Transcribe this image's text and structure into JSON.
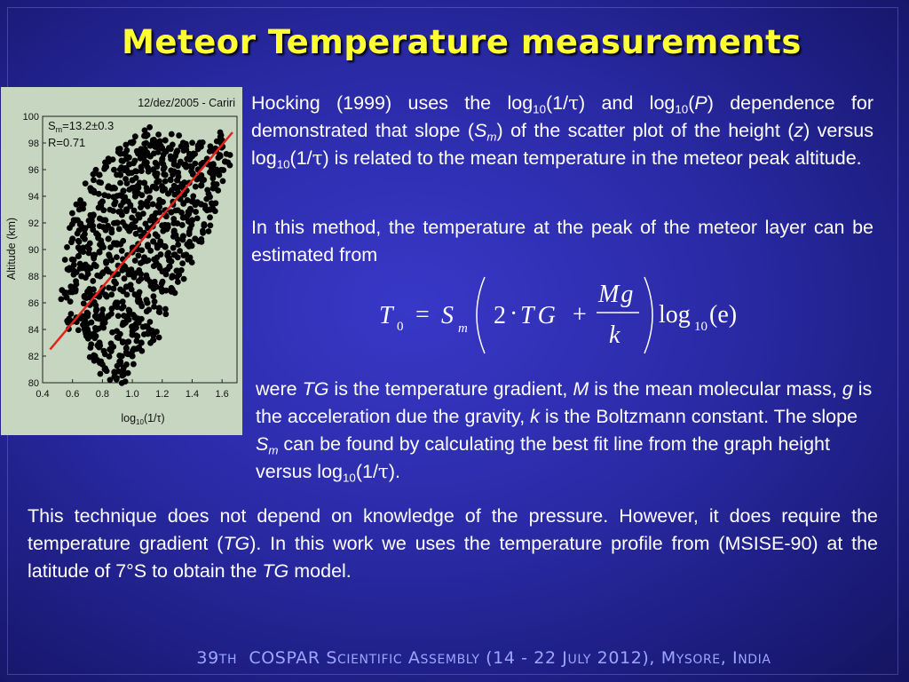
{
  "title": "Meteor Temperature measurements",
  "para1": {
    "a": "Hocking (1999) uses the log",
    "a_sub": "10",
    "b": "(1/",
    "tau1": "τ",
    "c": ") and log",
    "c_sub": "10",
    "d": "(",
    "P": "P",
    "e": ") dependence for demonstrated that slope (",
    "S": "S",
    "S_sub": "m",
    "f": ") of the scatter plot of the height (",
    "z": "z",
    "g": ") versus log",
    "g_sub": "10",
    "h": "(1/",
    "tau2": "τ",
    "i": ") is related to the mean temperature in the meteor peak altitude."
  },
  "para2": "In this method, the temperature at the peak of the meteor layer can be estimated from",
  "formula": {
    "T": "T",
    "T_sub": "0",
    "eq": "=",
    "S": "S",
    "S_sub": "m",
    "two": "2",
    "dot": "·",
    "TG": "TG",
    "plus": "+",
    "num": "Mg",
    "den": "k",
    "log": "log",
    "log_sub": "10",
    "arg": "(e)"
  },
  "para3": {
    "a": "were ",
    "TG1": "TG",
    "b": " is the temperature gradient, ",
    "M": "M",
    "c": " is the mean molecular mass, ",
    "g": "g",
    "d": " is the acceleration due the gravity, ",
    "k": "k",
    "e": " is the Boltzmann constant. The slope ",
    "S": "S",
    "S_sub": "m",
    "f": " can be found by calculating the best fit line from the graph height versus log",
    "f_sub": "10",
    "g2": "(1/",
    "tau": "τ",
    "h": ")."
  },
  "para4": {
    "a": "This technique does not depend on knowledge of the pressure. However, it does require the temperature gradient (",
    "TG1": "TG",
    "b": "). In this work we uses the temperature profile from (MSISE-90) at the latitude of 7°S to obtain the ",
    "TG2": "TG",
    "c": " model."
  },
  "chart": {
    "date_label": "12/dez/2005 - Cariri",
    "stat_s": "S",
    "stat_s_sub": "m",
    "stat_s_val": "=13.2±0.3",
    "stat_r": "R=0.71",
    "ylabel": "Altitude (km)",
    "xlabel_pre": "log",
    "xlabel_sub": "10",
    "xlabel_post": "(1/τ)",
    "point_color": "#000000",
    "fit_color": "#e8201a"
  },
  "chart_data": {
    "type": "scatter",
    "x_ticks": [
      "0.4",
      "0.6",
      "0.8",
      "1.0",
      "1.2",
      "1.4",
      "1.6"
    ],
    "y_ticks": [
      "80",
      "82",
      "84",
      "86",
      "88",
      "90",
      "92",
      "94",
      "96",
      "98",
      "100"
    ],
    "xlim": [
      0.4,
      1.7
    ],
    "ylim": [
      80,
      100
    ],
    "fit_line": {
      "x": [
        0.45,
        1.67
      ],
      "y": [
        82.5,
        98.8
      ]
    },
    "points": [
      [
        0.82,
        81.0
      ],
      [
        0.88,
        80.8
      ],
      [
        0.75,
        82.0
      ],
      [
        0.78,
        83.0
      ],
      [
        0.85,
        82.5
      ],
      [
        0.92,
        81.6
      ],
      [
        0.72,
        83.5
      ],
      [
        0.8,
        84.2
      ],
      [
        0.9,
        83.4
      ],
      [
        0.96,
        82.6
      ],
      [
        0.7,
        85.0
      ],
      [
        0.76,
        85.5
      ],
      [
        0.84,
        85.0
      ],
      [
        0.94,
        84.5
      ],
      [
        1.0,
        83.6
      ],
      [
        0.68,
        86.5
      ],
      [
        0.74,
        87.0
      ],
      [
        0.82,
        86.6
      ],
      [
        0.9,
        86.0
      ],
      [
        0.98,
        85.4
      ],
      [
        1.04,
        84.8
      ],
      [
        0.66,
        88.0
      ],
      [
        0.72,
        88.6
      ],
      [
        0.8,
        88.2
      ],
      [
        0.88,
        87.6
      ],
      [
        0.96,
        87.2
      ],
      [
        1.04,
        86.6
      ],
      [
        1.1,
        86.0
      ],
      [
        0.64,
        89.5
      ],
      [
        0.7,
        90.2
      ],
      [
        0.78,
        89.8
      ],
      [
        0.86,
        89.2
      ],
      [
        0.94,
        88.8
      ],
      [
        1.02,
        88.2
      ],
      [
        1.1,
        87.8
      ],
      [
        1.16,
        87.2
      ],
      [
        0.68,
        91.5
      ],
      [
        0.76,
        91.2
      ],
      [
        0.84,
        90.8
      ],
      [
        0.92,
        90.4
      ],
      [
        1.0,
        89.8
      ],
      [
        1.08,
        89.4
      ],
      [
        1.16,
        89.0
      ],
      [
        1.22,
        88.4
      ],
      [
        0.74,
        92.6
      ],
      [
        0.82,
        92.2
      ],
      [
        0.9,
        92.0
      ],
      [
        0.98,
        91.4
      ],
      [
        1.06,
        91.0
      ],
      [
        1.14,
        90.6
      ],
      [
        1.22,
        90.2
      ],
      [
        1.28,
        89.6
      ],
      [
        0.8,
        93.6
      ],
      [
        0.88,
        93.4
      ],
      [
        0.96,
        93.0
      ],
      [
        1.04,
        92.6
      ],
      [
        1.12,
        92.2
      ],
      [
        1.2,
        91.8
      ],
      [
        1.28,
        91.4
      ],
      [
        1.34,
        91.0
      ],
      [
        0.86,
        94.6
      ],
      [
        0.94,
        94.4
      ],
      [
        1.02,
        94.0
      ],
      [
        1.1,
        93.6
      ],
      [
        1.18,
        93.2
      ],
      [
        1.26,
        92.8
      ],
      [
        1.34,
        92.4
      ],
      [
        1.4,
        92.2
      ],
      [
        0.92,
        95.6
      ],
      [
        1.0,
        95.2
      ],
      [
        1.08,
        95.0
      ],
      [
        1.16,
        94.6
      ],
      [
        1.24,
        94.2
      ],
      [
        1.32,
        93.8
      ],
      [
        1.4,
        93.6
      ],
      [
        1.46,
        93.4
      ],
      [
        0.98,
        96.4
      ],
      [
        1.06,
        96.2
      ],
      [
        1.14,
        96.0
      ],
      [
        1.22,
        95.6
      ],
      [
        1.3,
        95.2
      ],
      [
        1.38,
        95.0
      ],
      [
        1.46,
        94.8
      ],
      [
        1.04,
        97.2
      ],
      [
        1.12,
        97.0
      ],
      [
        1.2,
        96.8
      ],
      [
        1.28,
        96.4
      ],
      [
        1.36,
        96.2
      ],
      [
        1.44,
        96.0
      ],
      [
        1.52,
        95.8
      ],
      [
        1.12,
        97.8
      ],
      [
        1.2,
        97.6
      ],
      [
        1.3,
        97.4
      ],
      [
        1.4,
        97.0
      ],
      [
        1.5,
        96.8
      ],
      [
        1.56,
        97.4
      ],
      [
        1.22,
        98.2
      ],
      [
        1.34,
        98.0
      ],
      [
        1.44,
        97.8
      ],
      [
        1.6,
        98.2
      ],
      [
        0.6,
        90.8
      ],
      [
        0.62,
        92.2
      ],
      [
        0.66,
        93.4
      ],
      [
        0.58,
        88.6
      ],
      [
        0.62,
        87.0
      ],
      [
        0.66,
        85.0
      ],
      [
        0.7,
        84.0
      ],
      [
        1.26,
        87.0
      ],
      [
        1.18,
        85.6
      ],
      [
        1.1,
        84.2
      ],
      [
        1.06,
        83.0
      ],
      [
        1.0,
        82.0
      ],
      [
        0.94,
        80.6
      ],
      [
        1.3,
        88.4
      ],
      [
        1.36,
        89.6
      ],
      [
        1.42,
        90.8
      ],
      [
        1.48,
        91.8
      ],
      [
        1.52,
        93.0
      ],
      [
        1.54,
        94.6
      ],
      [
        1.58,
        95.6
      ],
      [
        0.72,
        94.6
      ],
      [
        0.78,
        95.6
      ],
      [
        0.84,
        96.6
      ],
      [
        0.92,
        97.2
      ],
      [
        1.0,
        98.0
      ],
      [
        1.1,
        98.6
      ],
      [
        1.62,
        96.6
      ],
      [
        0.56,
        86.4
      ],
      [
        0.6,
        84.6
      ],
      [
        1.14,
        83.2
      ]
    ]
  },
  "footer": {
    "n": "39",
    "th": "TH",
    "c1": "COSPAR S",
    "c2": "CIENTIFIC",
    "c3": " A",
    "c4": "SSEMBLY",
    "c5": "  (14 - 22 J",
    "c6": "ULY",
    "c7": " 2012), M",
    "c8": "YSORE",
    "c9": ", I",
    "c10": "NDIA"
  }
}
